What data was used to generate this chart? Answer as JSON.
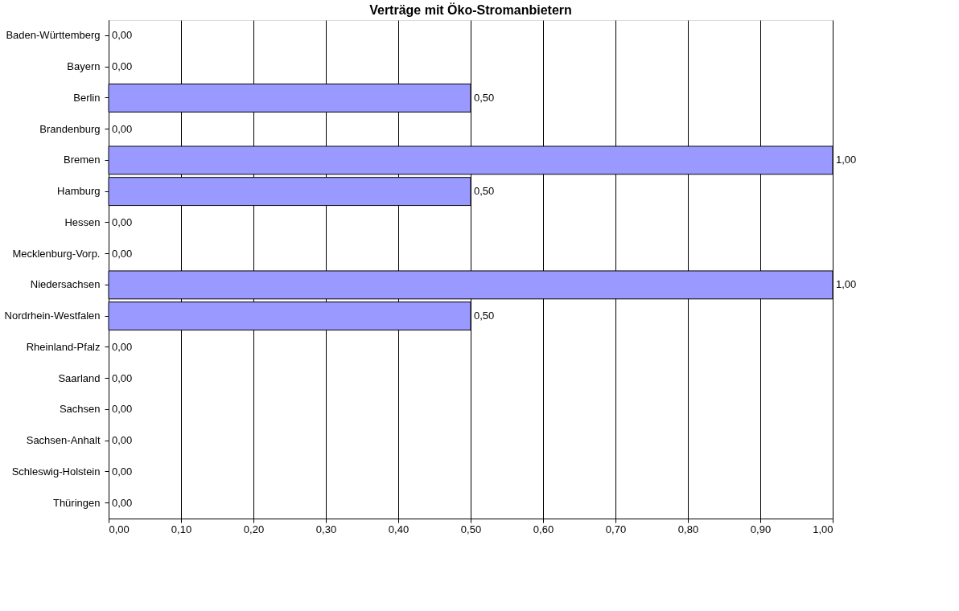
{
  "chart_data": {
    "type": "bar",
    "orientation": "horizontal",
    "title": "Verträge mit Öko-Stromanbietern",
    "categories": [
      "Baden-Württemberg",
      "Bayern",
      "Berlin",
      "Brandenburg",
      "Bremen",
      "Hamburg",
      "Hessen",
      "Mecklenburg-Vorp.",
      "Niedersachsen",
      "Nordrhein-Westfalen",
      "Rheinland-Pfalz",
      "Saarland",
      "Sachsen",
      "Sachsen-Anhalt",
      "Schleswig-Holstein",
      "Thüringen"
    ],
    "values": [
      0,
      0,
      0.5,
      0,
      1,
      0.5,
      0,
      0,
      1,
      0.5,
      0,
      0,
      0,
      0,
      0,
      0
    ],
    "value_labels": [
      "0,00",
      "0,00",
      "0,50",
      "0,00",
      "1,00",
      "0,50",
      "0,00",
      "0,00",
      "1,00",
      "0,50",
      "0,00",
      "0,00",
      "0,00",
      "0,00",
      "0,00",
      "0,00"
    ],
    "color": "#9999ff",
    "xlim": [
      0,
      1
    ],
    "xticks": [
      {
        "value": 0,
        "label": "0,00"
      },
      {
        "value": 0.1,
        "label": "0,10"
      },
      {
        "value": 0.2,
        "label": "0,20"
      },
      {
        "value": 0.3,
        "label": "0,30"
      },
      {
        "value": 0.4,
        "label": "0,40"
      },
      {
        "value": 0.5,
        "label": "0,50"
      },
      {
        "value": 0.6,
        "label": "0,60"
      },
      {
        "value": 0.7,
        "label": "0,70"
      },
      {
        "value": 0.8,
        "label": "0,80"
      },
      {
        "value": 0.9,
        "label": "0,90"
      },
      {
        "value": 1,
        "label": "1,00"
      }
    ],
    "grid": "x"
  }
}
